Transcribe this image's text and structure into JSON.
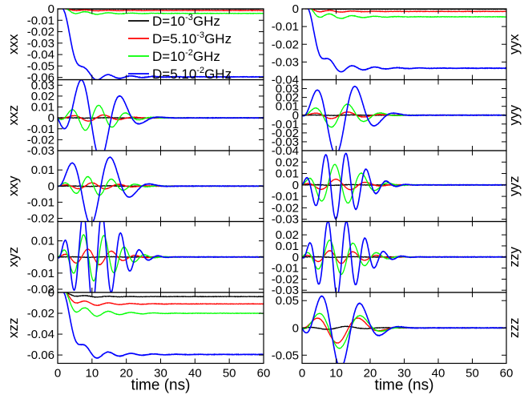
{
  "chart_data": {
    "type": "line",
    "x_range": [
      0,
      60
    ],
    "x_ticks": [
      "0",
      "10",
      "20",
      "30",
      "40",
      "50",
      "60"
    ],
    "xlabel": "time (ns)",
    "legend": {
      "placement": "top-left panel",
      "entries": [
        {
          "prefix": "D=10",
          "exp": "-3",
          "suffix": "GHz",
          "color": "#000000"
        },
        {
          "prefix": "D=5.10",
          "exp": "-3",
          "suffix": "GHz",
          "color": "#ff0000"
        },
        {
          "prefix": "D=10",
          "exp": "-2",
          "suffix": "GHz",
          "color": "#00ff00"
        },
        {
          "prefix": "D=5.10",
          "exp": "-2",
          "suffix": "GHz",
          "color": "#0000ff"
        }
      ]
    },
    "series_names": [
      "D=10^-3 GHz",
      "D=5.10^-3 GHz",
      "D=10^-2 GHz",
      "D=5.10^-2 GHz"
    ],
    "series_colors": [
      "#000000",
      "#ff0000",
      "#00ff00",
      "#0000ff"
    ],
    "panels": [
      {
        "label": "xxx",
        "column": "left",
        "ylim": [
          -0.062,
          0.0
        ],
        "yticks": [
          "0",
          "-0.01",
          "-0.02",
          "-0.03",
          "-0.04",
          "-0.05",
          "-0.06"
        ],
        "ytick_values": [
          0,
          -0.01,
          -0.02,
          -0.03,
          -0.04,
          -0.05,
          -0.06
        ],
        "kind": "decay",
        "series": [
          {
            "final": -0.0002,
            "amp": 0.0002
          },
          {
            "final": -0.0015,
            "amp": 0.0012
          },
          {
            "final": -0.004,
            "amp": 0.0035
          },
          {
            "final": -0.0595,
            "amp": 0.012
          }
        ]
      },
      {
        "label": "xxz",
        "column": "left",
        "ylim": [
          -0.03,
          0.035
        ],
        "yticks": [
          "0.03",
          "0.02",
          "0.01",
          "0",
          "-0.01",
          "-0.02",
          "-0.03"
        ],
        "ytick_values": [
          0.03,
          0.02,
          0.01,
          0,
          -0.01,
          -0.02,
          -0.03
        ],
        "kind": "osc",
        "series": [
          {
            "amp": 0.0002,
            "period": 12,
            "phase": 0
          },
          {
            "amp": -0.003,
            "period": 9,
            "phase": 0.5
          },
          {
            "amp": -0.012,
            "period": 8,
            "phase": 0.5
          },
          {
            "amp": -0.04,
            "period": 12,
            "phase": 0.4
          }
        ]
      },
      {
        "label": "xxy",
        "column": "left",
        "ylim": [
          -0.022,
          0.022
        ],
        "yticks": [
          "0.01",
          "0",
          "-0.01",
          "-0.02"
        ],
        "ytick_values": [
          0.01,
          0,
          -0.01,
          -0.02
        ],
        "kind": "osc",
        "series": [
          {
            "amp": 0.0002,
            "period": 12,
            "phase": 0
          },
          {
            "amp": 0.002,
            "period": 8,
            "phase": 0
          },
          {
            "amp": 0.006,
            "period": 7,
            "phase": 0
          },
          {
            "amp": 0.024,
            "period": 12,
            "phase": -0.1
          }
        ]
      },
      {
        "label": "xyz",
        "column": "left",
        "ylim": [
          -0.022,
          0.022
        ],
        "yticks": [
          "0.01",
          "0",
          "-0.01",
          "-0.02"
        ],
        "ytick_values": [
          0.01,
          0,
          -0.01,
          -0.02
        ],
        "kind": "osc",
        "series": [
          {
            "amp": 0.0002,
            "period": 12,
            "phase": 0
          },
          {
            "amp": 0.005,
            "period": 7,
            "phase": 0
          },
          {
            "amp": 0.015,
            "period": 6,
            "phase": 0
          },
          {
            "amp": 0.03,
            "period": 5.5,
            "phase": -0.2
          }
        ]
      },
      {
        "label": "xzz",
        "column": "left",
        "ylim": [
          -0.068,
          0.0
        ],
        "yticks": [
          "0",
          "-0.02",
          "-0.04",
          "-0.06"
        ],
        "ytick_values": [
          0,
          -0.02,
          -0.04,
          -0.06
        ],
        "kind": "decay",
        "series": [
          {
            "final": -0.004,
            "amp": 0.002
          },
          {
            "final": -0.011,
            "amp": 0.006
          },
          {
            "final": -0.02,
            "amp": 0.012
          },
          {
            "final": -0.0595,
            "amp": 0.015
          }
        ]
      },
      {
        "label": "yyx",
        "column": "right",
        "ylim": [
          -0.04,
          0.0
        ],
        "yticks": [
          "0",
          "-0.01",
          "-0.02",
          "-0.03",
          "-0.04"
        ],
        "ytick_values": [
          0,
          -0.01,
          -0.02,
          -0.03,
          -0.04
        ],
        "kind": "decay",
        "series": [
          {
            "final": -0.0002,
            "amp": 0.0002
          },
          {
            "final": -0.0015,
            "amp": 0.0015
          },
          {
            "final": -0.0045,
            "amp": 0.004
          },
          {
            "final": -0.0335,
            "amp": 0.009
          }
        ]
      },
      {
        "label": "yyy",
        "column": "right",
        "ylim": [
          -0.04,
          0.04
        ],
        "yticks": [
          "0.03",
          "0.02",
          "0.01",
          "0",
          "-0.01",
          "-0.02",
          "-0.03",
          "-0.04"
        ],
        "ytick_values": [
          0.03,
          0.02,
          0.01,
          0,
          -0.01,
          -0.02,
          -0.03,
          -0.04
        ],
        "kind": "osc",
        "series": [
          {
            "amp": 0.0003,
            "period": 12,
            "phase": 0
          },
          {
            "amp": -0.004,
            "period": 10,
            "phase": 0.8
          },
          {
            "amp": -0.014,
            "period": 10,
            "phase": 0.8
          },
          {
            "amp": 0.045,
            "period": 12,
            "phase": -0.15
          }
        ]
      },
      {
        "label": "yyz",
        "column": "right",
        "ylim": [
          -0.032,
          0.03
        ],
        "yticks": [
          "0.02",
          "0.01",
          "0",
          "-0.01",
          "-0.02",
          "-0.03"
        ],
        "ytick_values": [
          0.02,
          0.01,
          0,
          -0.01,
          -0.02,
          -0.03
        ],
        "kind": "osc",
        "series": [
          {
            "amp": 0.0003,
            "period": 12,
            "phase": 0
          },
          {
            "amp": 0.005,
            "period": 9,
            "phase": 0.3
          },
          {
            "amp": 0.018,
            "period": 8,
            "phase": 0.1
          },
          {
            "amp": 0.03,
            "period": 6,
            "phase": 0.2
          }
        ]
      },
      {
        "label": "zzy",
        "column": "right",
        "ylim": [
          -0.032,
          0.032
        ],
        "yticks": [
          "0.02",
          "0.01",
          "0",
          "-0.01",
          "-0.02",
          "-0.03"
        ],
        "ytick_values": [
          0.02,
          0.01,
          0,
          -0.01,
          -0.02,
          -0.03
        ],
        "kind": "osc",
        "series": [
          {
            "amp": 0.0003,
            "period": 12,
            "phase": 0
          },
          {
            "amp": 0.006,
            "period": 7,
            "phase": 0.2
          },
          {
            "amp": 0.016,
            "period": 7,
            "phase": 0.2
          },
          {
            "amp": 0.035,
            "period": 5.5,
            "phase": -0.25
          }
        ]
      },
      {
        "label": "zzz",
        "column": "right",
        "ylim": [
          -0.065,
          0.065
        ],
        "yticks": [
          "0.05",
          "0",
          "-0.05"
        ],
        "ytick_values": [
          0.05,
          0,
          -0.05
        ],
        "kind": "osc",
        "series": [
          {
            "amp": 0.003,
            "period": 12,
            "phase": 0.3
          },
          {
            "amp": -0.028,
            "period": 13,
            "phase": 0.9
          },
          {
            "amp": -0.038,
            "period": 13,
            "phase": 0.8
          },
          {
            "amp": 0.075,
            "period": 12,
            "phase": -0.4
          }
        ]
      }
    ]
  }
}
